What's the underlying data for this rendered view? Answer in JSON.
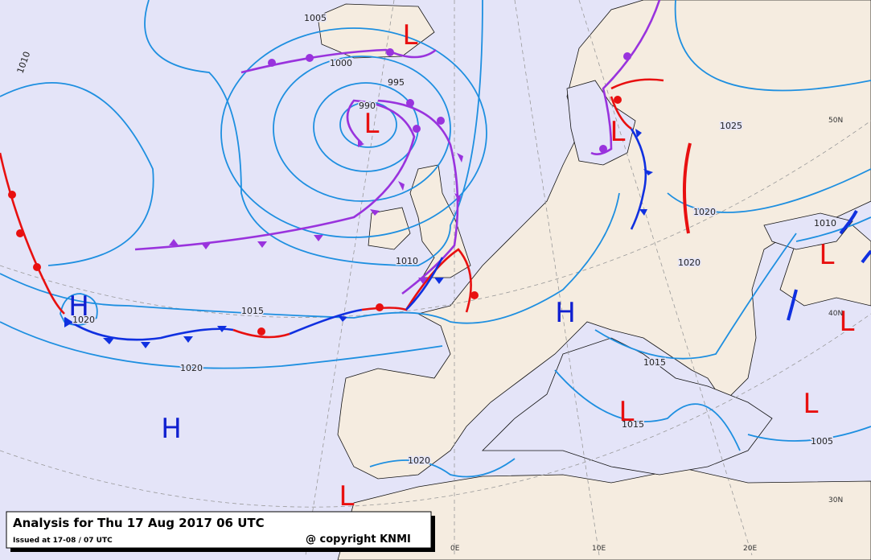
{
  "caption": {
    "title": "Analysis for Thu 17 Aug 2017 06 UTC",
    "issued": "Issued at 17-08 / 07 UTC",
    "copyright": "@ copyright KNMI"
  },
  "isobar_labels": [
    "1005",
    "1000",
    "995",
    "990",
    "1010",
    "1010",
    "1015",
    "1020",
    "1020",
    "1020",
    "1025",
    "1020",
    "1020",
    "1015",
    "1015",
    "1010",
    "1005"
  ],
  "pressure_centers": [
    "L",
    "L",
    "L",
    "L",
    "L",
    "L",
    "L",
    "L",
    "H",
    "H",
    "H"
  ],
  "graticule_labels": [
    "50N",
    "40N",
    "30N",
    "0E",
    "10E",
    "20E"
  ]
}
